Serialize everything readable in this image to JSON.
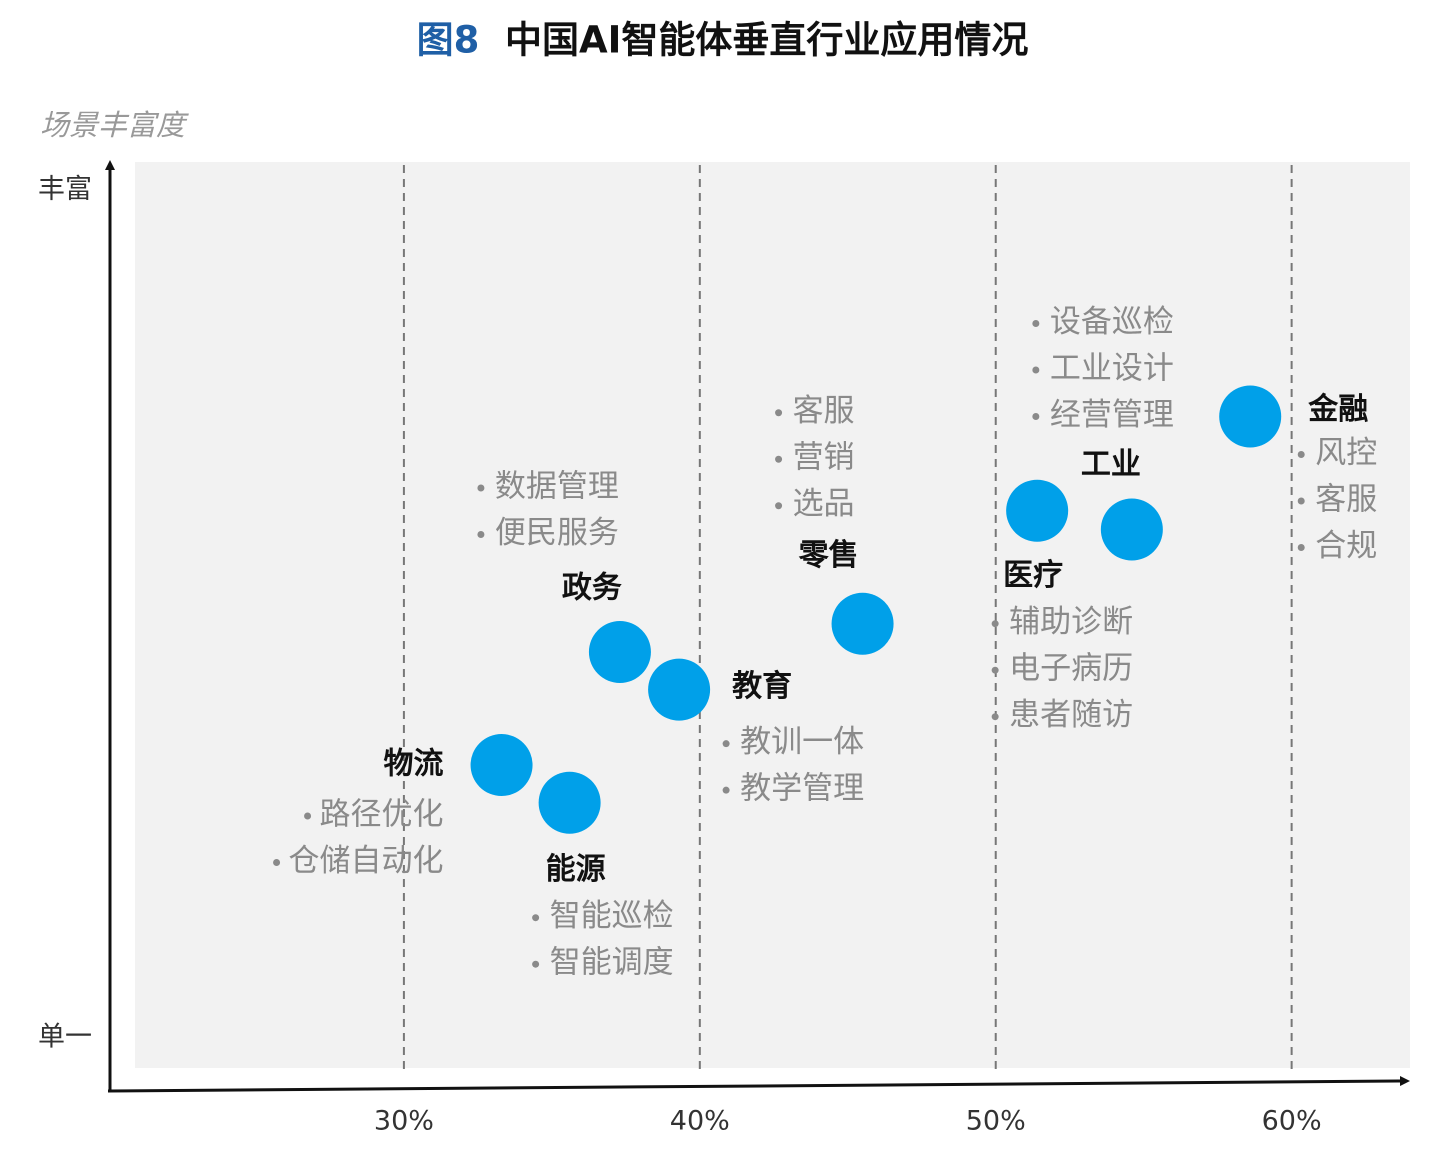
{
  "chart_data": {
    "type": "scatter",
    "title_prefix": "图8",
    "title": "中国AI智能体垂直行业应用情况",
    "y_label": "场景丰富度",
    "color": "#00a0e9",
    "grid": true,
    "xlim": [
      20,
      64
    ],
    "xticks": [
      {
        "value": 30,
        "label": "30%"
      },
      {
        "value": 40,
        "label": "40%"
      },
      {
        "value": 50,
        "label": "50%"
      },
      {
        "value": 60,
        "label": "60%"
      }
    ],
    "ylim": [
      0.45,
      10.27
    ],
    "yticks": [
      {
        "value": 1,
        "label": "单一"
      },
      {
        "value": 10,
        "label": "丰富"
      }
    ],
    "points": [
      {
        "name": "物流",
        "x": 33.3,
        "y": 3.9,
        "items": [
          "路径优化",
          "仓储自动化"
        ]
      },
      {
        "name": "能源",
        "x": 35.6,
        "y": 3.5,
        "items": [
          "智能巡检",
          "智能调度"
        ]
      },
      {
        "name": "政务",
        "x": 37.3,
        "y": 5.1,
        "items": [
          "数据管理",
          "便民服务"
        ]
      },
      {
        "name": "教育",
        "x": 39.3,
        "y": 4.7,
        "items": [
          "教训一体",
          "教学管理"
        ]
      },
      {
        "name": "零售",
        "x": 45.5,
        "y": 5.4,
        "items": [
          "客服",
          "营销",
          "选品"
        ]
      },
      {
        "name": "医疗",
        "x": 51.4,
        "y": 6.6,
        "items": [
          "辅助诊断",
          "电子病历",
          "患者随访"
        ]
      },
      {
        "name": "工业",
        "x": 54.6,
        "y": 6.4,
        "items": [
          "设备巡检",
          "工业设计",
          "经营管理"
        ]
      },
      {
        "name": "金融",
        "x": 58.6,
        "y": 7.6,
        "items": [
          "风控",
          "客服",
          "合规"
        ]
      }
    ]
  }
}
